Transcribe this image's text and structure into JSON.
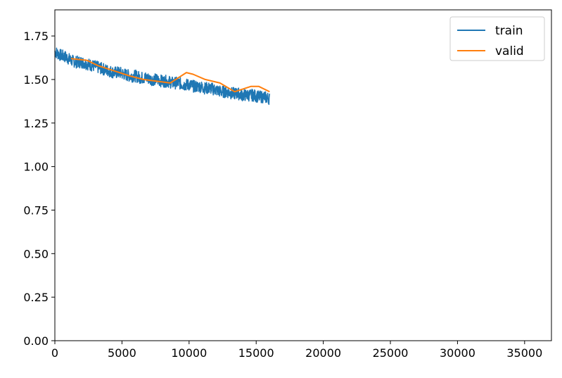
{
  "chart_data": {
    "type": "line",
    "title": "",
    "xlabel": "",
    "ylabel": "",
    "xlim": [
      0,
      37000
    ],
    "ylim": [
      0,
      1.9
    ],
    "x_ticks": [
      0,
      5000,
      10000,
      15000,
      20000,
      25000,
      30000,
      35000
    ],
    "y_ticks": [
      0.0,
      0.25,
      0.5,
      0.75,
      1.0,
      1.25,
      1.5,
      1.75
    ],
    "x_tick_labels": [
      "0",
      "5000",
      "10000",
      "15000",
      "20000",
      "25000",
      "30000",
      "35000"
    ],
    "y_tick_labels": [
      "0.00",
      "0.25",
      "0.50",
      "0.75",
      "1.00",
      "1.25",
      "1.50",
      "1.75"
    ],
    "grid": false,
    "legend": "top-right",
    "series": [
      {
        "name": "train",
        "color": "#1f77b4",
        "x": [
          0,
          400,
          800,
          1200,
          1600,
          2000,
          2400,
          2800,
          3200,
          3600,
          4000,
          4400,
          4800,
          5200,
          5600,
          6000,
          6400,
          6800,
          7200,
          7600,
          8000,
          8400,
          8800,
          9200,
          9600,
          10000,
          10400,
          10800,
          11200,
          11600,
          12000,
          12400,
          12800,
          13200,
          13600,
          14000,
          14400,
          14800,
          15200,
          15600,
          16000
        ],
        "y": [
          1.66,
          1.64,
          1.63,
          1.61,
          1.6,
          1.6,
          1.59,
          1.58,
          1.57,
          1.56,
          1.55,
          1.54,
          1.54,
          1.53,
          1.52,
          1.52,
          1.51,
          1.51,
          1.5,
          1.5,
          1.49,
          1.49,
          1.48,
          1.48,
          1.47,
          1.47,
          1.46,
          1.46,
          1.45,
          1.45,
          1.44,
          1.43,
          1.43,
          1.42,
          1.42,
          1.41,
          1.41,
          1.41,
          1.4,
          1.4,
          1.39
        ],
        "noise": 0.035
      },
      {
        "name": "valid",
        "color": "#ff7f0e",
        "x": [
          1200,
          2400,
          3200,
          4400,
          5600,
          6600,
          7600,
          8600,
          9800,
          10300,
          11200,
          12300,
          13400,
          14600,
          15200,
          16000
        ],
        "y": [
          1.62,
          1.61,
          1.58,
          1.55,
          1.52,
          1.5,
          1.49,
          1.48,
          1.54,
          1.53,
          1.5,
          1.48,
          1.43,
          1.46,
          1.46,
          1.43
        ]
      }
    ]
  }
}
